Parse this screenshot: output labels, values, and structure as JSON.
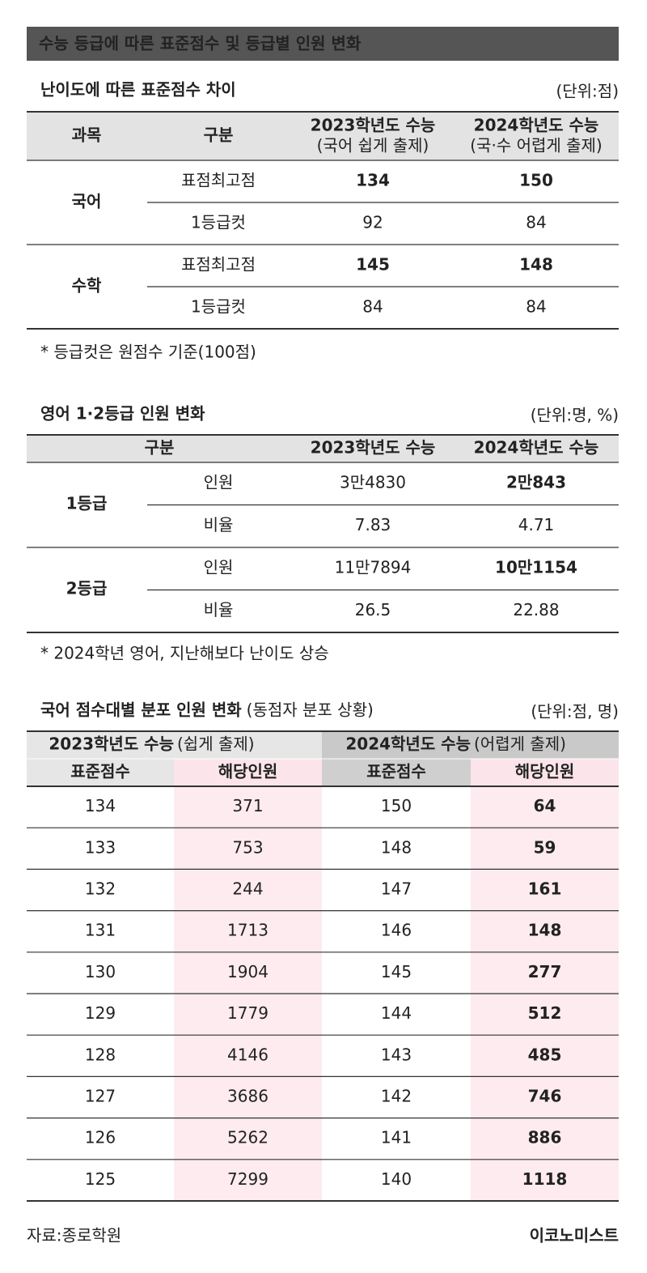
{
  "header": {
    "title": "수능 등급에 따른 표준점수 및 등급별 인원 변화"
  },
  "accent_color": "#e8336b",
  "table1": {
    "title": "난이도에 따른 표준점수 차이",
    "unit": "(단위:점)",
    "columns": [
      {
        "label": "과목"
      },
      {
        "label": "구분"
      },
      {
        "label": "2023학년도 수능",
        "note": "(국어 쉽게 출제)"
      },
      {
        "label": "2024학년도 수능",
        "note": "(국·수 어렵게 출제)"
      }
    ],
    "groups": [
      {
        "subject": "국어",
        "rows": [
          {
            "label": "표점최고점",
            "values": [
              134,
              150
            ]
          },
          {
            "label": "1등급컷",
            "values": [
              92,
              84
            ]
          }
        ]
      },
      {
        "subject": "수학",
        "rows": [
          {
            "label": "표점최고점",
            "values": [
              145,
              148
            ]
          },
          {
            "label": "1등급컷",
            "values": [
              84,
              84
            ]
          }
        ]
      }
    ],
    "note": "* 등급컷은 원점수 기준(100점)"
  },
  "table2": {
    "title": "영어 1·2등급 인원 변화",
    "unit": "(단위:명, %)",
    "columns": [
      "구분",
      "2023학년도 수능",
      "2024학년도 수능"
    ],
    "groups": [
      {
        "grade": "1등급",
        "rows": [
          {
            "label": "인원",
            "values": [
              "3만4830",
              "2만843"
            ]
          },
          {
            "label": "비율",
            "values": [
              7.83,
              4.71
            ]
          }
        ]
      },
      {
        "grade": "2등급",
        "rows": [
          {
            "label": "인원",
            "values": [
              "11만7894",
              "10만1154"
            ]
          },
          {
            "label": "비율",
            "values": [
              26.5,
              22.88
            ]
          }
        ]
      }
    ],
    "note": "* 2024학년 영어, 지난해보다 난이도 상승"
  },
  "table3": {
    "title": "국어 점수대별 분포 인원 변화",
    "subtitle": "(동점자 분포 상황)",
    "unit": "(단위:점, 명)",
    "groups": [
      {
        "title": "2023학년도 수능",
        "note": "(쉽게 출제)"
      },
      {
        "title": "2024학년도 수능",
        "note": "(어렵게 출제)"
      }
    ],
    "columns": [
      "표준점수",
      "해당인원",
      "표준점수",
      "해당인원"
    ],
    "rows": [
      [
        134,
        371,
        150,
        64
      ],
      [
        133,
        753,
        148,
        59
      ],
      [
        132,
        244,
        147,
        161
      ],
      [
        131,
        1713,
        146,
        148
      ],
      [
        130,
        1904,
        145,
        277
      ],
      [
        129,
        1779,
        144,
        512
      ],
      [
        128,
        4146,
        143,
        485
      ],
      [
        127,
        3686,
        142,
        746
      ],
      [
        126,
        5262,
        141,
        886
      ],
      [
        125,
        7299,
        140,
        1118
      ]
    ]
  },
  "footer": {
    "source": "자료:종로학원",
    "brand": "이코노미스트"
  }
}
